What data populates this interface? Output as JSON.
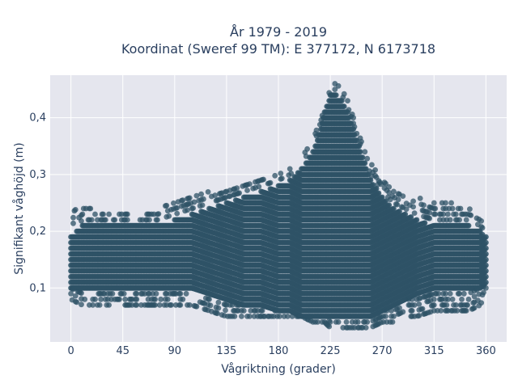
{
  "chart_data": {
    "type": "scatter",
    "title_lines": [
      "År 1979 - 2019",
      "Koordinat (Sweref 99 TM): E 377172, N 6173718"
    ],
    "xlabel": "Vågriktning (grader)",
    "ylabel": "Signifikant våghöjd (m)",
    "xlim": [
      -18,
      378
    ],
    "ylim": [
      0.005,
      0.475
    ],
    "xticks": [
      0,
      45,
      90,
      135,
      180,
      225,
      270,
      315,
      360
    ],
    "xtick_labels": [
      "0",
      "45",
      "90",
      "135",
      "180",
      "225",
      "270",
      "315",
      "360"
    ],
    "yticks": [
      0.1,
      0.2,
      0.3,
      0.4
    ],
    "ytick_labels": [
      "0,1",
      "0,2",
      "0,3",
      "0,4"
    ],
    "grid": true,
    "legend": "none",
    "marker_color": "#2e5266",
    "plot_background": "#e5e6ee",
    "envelope": {
      "direction_deg": [
        0,
        10,
        20,
        30,
        45,
        60,
        75,
        90,
        105,
        120,
        135,
        150,
        165,
        180,
        190,
        200,
        210,
        215,
        220,
        225,
        230,
        235,
        240,
        245,
        250,
        255,
        260,
        270,
        280,
        290,
        300,
        315,
        330,
        345,
        355,
        360
      ],
      "min_height_m": [
        0.08,
        0.07,
        0.07,
        0.07,
        0.07,
        0.07,
        0.07,
        0.07,
        0.07,
        0.06,
        0.05,
        0.05,
        0.05,
        0.05,
        0.05,
        0.05,
        0.04,
        0.04,
        0.04,
        0.03,
        0.03,
        0.03,
        0.03,
        0.03,
        0.03,
        0.03,
        0.03,
        0.04,
        0.04,
        0.05,
        0.05,
        0.06,
        0.06,
        0.06,
        0.07,
        0.09
      ],
      "max_height_m": [
        0.24,
        0.24,
        0.24,
        0.23,
        0.23,
        0.23,
        0.24,
        0.25,
        0.26,
        0.27,
        0.27,
        0.28,
        0.29,
        0.3,
        0.31,
        0.33,
        0.36,
        0.39,
        0.42,
        0.46,
        0.46,
        0.45,
        0.43,
        0.4,
        0.37,
        0.34,
        0.32,
        0.29,
        0.27,
        0.26,
        0.26,
        0.25,
        0.25,
        0.24,
        0.24,
        0.21
      ],
      "dense_low_m": [
        0.1,
        0.1,
        0.1,
        0.1,
        0.1,
        0.1,
        0.1,
        0.1,
        0.1,
        0.09,
        0.08,
        0.07,
        0.07,
        0.06,
        0.06,
        0.05,
        0.05,
        0.05,
        0.05,
        0.05,
        0.05,
        0.05,
        0.05,
        0.05,
        0.05,
        0.05,
        0.05,
        0.06,
        0.07,
        0.08,
        0.09,
        0.1,
        0.1,
        0.1,
        0.1,
        0.11
      ],
      "dense_high_m": [
        0.19,
        0.21,
        0.21,
        0.21,
        0.21,
        0.21,
        0.21,
        0.22,
        0.23,
        0.24,
        0.25,
        0.26,
        0.27,
        0.28,
        0.29,
        0.31,
        0.34,
        0.37,
        0.41,
        0.44,
        0.44,
        0.43,
        0.41,
        0.38,
        0.35,
        0.32,
        0.29,
        0.26,
        0.24,
        0.23,
        0.22,
        0.21,
        0.21,
        0.21,
        0.2,
        0.19
      ]
    }
  }
}
